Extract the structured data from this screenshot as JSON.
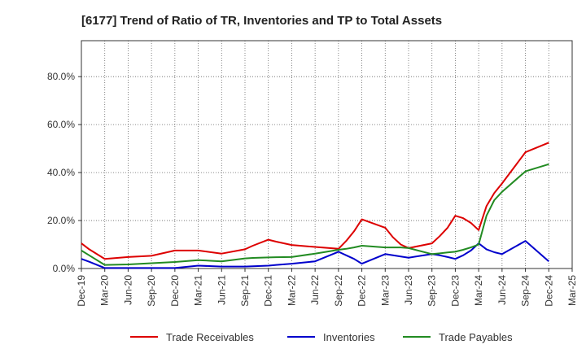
{
  "chart_data": {
    "type": "line",
    "title": "[6177]  Trend of Ratio of TR, Inventories and TP to Total Assets",
    "xlabel": "",
    "ylabel": "",
    "x_ticks": [
      "Dec-19",
      "Mar-20",
      "Jun-20",
      "Sep-20",
      "Dec-20",
      "Mar-21",
      "Jun-21",
      "Sep-21",
      "Dec-21",
      "Mar-22",
      "Jun-22",
      "Sep-22",
      "Dec-22",
      "Mar-23",
      "Jun-23",
      "Sep-23",
      "Dec-23",
      "Mar-24",
      "Jun-24",
      "Sep-24",
      "Dec-24",
      "Mar-25"
    ],
    "y_ticks": [
      "0.0%",
      "20.0%",
      "40.0%",
      "60.0%",
      "80.0%"
    ],
    "y_tick_values": [
      0,
      20,
      40,
      60,
      80
    ],
    "ylim": [
      0,
      95
    ],
    "grid": true,
    "legend_position": "bottom",
    "x": [
      "Dec-19",
      "Jan-20",
      "Mar-20",
      "Jun-20",
      "Sep-20",
      "Dec-20",
      "Mar-21",
      "Jun-21",
      "Sep-21",
      "Oct-21",
      "Dec-21",
      "Jan-22",
      "Mar-22",
      "Jun-22",
      "Sep-22",
      "Oct-22",
      "Nov-22",
      "Dec-22",
      "Mar-23",
      "Apr-23",
      "May-23",
      "Jun-23",
      "Sep-23",
      "Oct-23",
      "Nov-23",
      "Dec-23",
      "Jan-24",
      "Feb-24",
      "Mar-24",
      "Apr-24",
      "May-24",
      "Jun-24",
      "Sep-24",
      "Dec-24"
    ],
    "series": [
      {
        "name": "Trade Receivables",
        "color": "#dd0000",
        "values": [
          10.5,
          8.0,
          4.0,
          4.8,
          5.3,
          7.5,
          7.5,
          6.2,
          8.0,
          9.5,
          12.0,
          11.2,
          9.8,
          9.0,
          8.2,
          11.5,
          15.5,
          20.5,
          17.0,
          13.0,
          10.0,
          8.5,
          10.5,
          13.5,
          17.0,
          22.0,
          21.0,
          19.0,
          16.0,
          26.0,
          31.5,
          35.5,
          48.5,
          52.5
        ]
      },
      {
        "name": "Inventories",
        "color": "#0000cc",
        "values": [
          4.0,
          2.8,
          0.2,
          0.2,
          0.2,
          0.2,
          1.2,
          0.8,
          0.8,
          0.9,
          1.2,
          1.5,
          2.0,
          3.0,
          7.0,
          5.5,
          4.0,
          2.0,
          6.0,
          5.5,
          5.0,
          4.5,
          6.0,
          5.5,
          4.8,
          4.0,
          5.5,
          7.5,
          10.5,
          8.0,
          6.8,
          6.0,
          11.5,
          3.0
        ]
      },
      {
        "name": "Trade Payables",
        "color": "#228b22",
        "values": [
          7.5,
          5.5,
          1.5,
          1.7,
          2.2,
          2.7,
          3.5,
          3.0,
          4.2,
          4.4,
          4.6,
          4.7,
          4.8,
          6.2,
          7.8,
          8.2,
          8.8,
          9.5,
          8.8,
          8.8,
          8.8,
          8.5,
          6.0,
          6.3,
          6.7,
          7.0,
          7.8,
          8.8,
          10.0,
          22.0,
          28.5,
          32.0,
          40.5,
          43.5
        ]
      }
    ]
  }
}
